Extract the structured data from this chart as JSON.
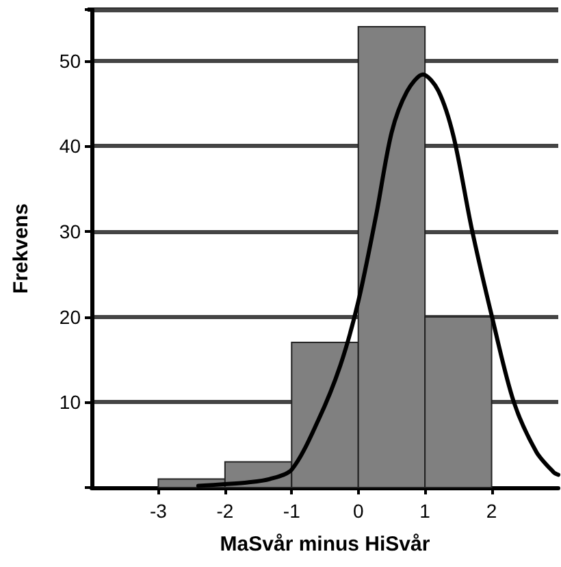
{
  "chart_data": {
    "type": "histogram",
    "xlabel": "MaSvår minus HiSvår",
    "ylabel": "Frekvens",
    "bins": [
      -3,
      -2,
      -1,
      0,
      1,
      2
    ],
    "values": [
      1,
      3,
      17,
      54,
      20
    ],
    "color": "#808080",
    "series": [
      {
        "type": "line",
        "color": "#000000",
        "x": [
          -2.4,
          -2,
          -1.66,
          -1.33,
          -1,
          -0.6,
          -0.27,
          0,
          0.27,
          0.5,
          0.73,
          0.97,
          1.2,
          1.43,
          1.7,
          2,
          2.33,
          2.67,
          2.93,
          3
        ],
        "values": [
          0.2,
          0.4,
          0.6,
          1.0,
          2.1,
          7.9,
          14.3,
          21.8,
          32,
          41.6,
          46.4,
          48.4,
          46.5,
          41.1,
          30.4,
          20.2,
          10.1,
          4.2,
          1.8,
          1.5
        ]
      }
    ],
    "xlim": [
      -4,
      3
    ],
    "xticks": [
      -3,
      -2,
      -1,
      0,
      1,
      2
    ],
    "ylim": [
      0,
      56
    ],
    "yticks": [
      10,
      20,
      30,
      40,
      50
    ],
    "grid": "y",
    "marker": "none",
    "line_style": "solid"
  }
}
